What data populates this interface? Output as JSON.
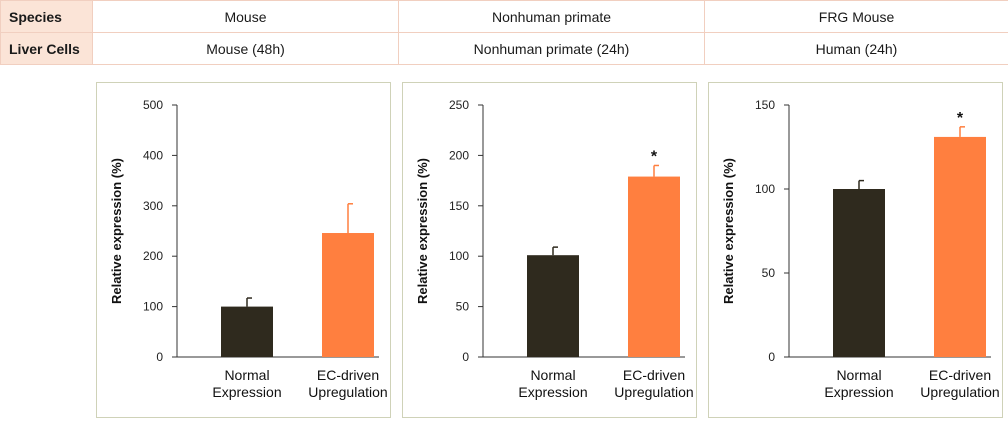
{
  "table": {
    "rows": [
      {
        "label": "Species",
        "cells": [
          "Mouse",
          "Nonhuman primate",
          "FRG Mouse"
        ]
      },
      {
        "label": "Liver Cells",
        "cells": [
          "Mouse (48h)",
          "Nonhuman primate (24h)",
          "Human (24h)"
        ]
      }
    ]
  },
  "colors": {
    "normal": "#2f2a1e",
    "upregulated": "#ff7f3f",
    "axis": "#333333"
  },
  "chart_data": [
    {
      "type": "bar",
      "title": "",
      "ylabel": "Relative expression (%)",
      "ylim": [
        0,
        500
      ],
      "yticks": [
        0,
        100,
        200,
        300,
        400,
        500
      ],
      "categories": [
        [
          "Normal",
          "Expression"
        ],
        [
          "EC-driven",
          "Upregulation"
        ]
      ],
      "values": [
        100,
        246
      ],
      "errors": [
        17,
        58
      ],
      "significance": [
        "",
        ""
      ]
    },
    {
      "type": "bar",
      "title": "",
      "ylabel": "Relative expression (%)",
      "ylim": [
        0,
        250
      ],
      "yticks": [
        0,
        50,
        100,
        150,
        200,
        250
      ],
      "categories": [
        [
          "Normal",
          "Expression"
        ],
        [
          "EC-driven",
          "Upregulation"
        ]
      ],
      "values": [
        101,
        179
      ],
      "errors": [
        8,
        11
      ],
      "significance": [
        "",
        "*"
      ]
    },
    {
      "type": "bar",
      "title": "",
      "ylabel": "Relative expression (%)",
      "ylim": [
        0,
        150
      ],
      "yticks": [
        0,
        50,
        100,
        150
      ],
      "categories": [
        [
          "Normal",
          "Expression"
        ],
        [
          "EC-driven",
          "Upregulation"
        ]
      ],
      "values": [
        100,
        131
      ],
      "errors": [
        5,
        6
      ],
      "significance": [
        "",
        "*"
      ]
    }
  ]
}
